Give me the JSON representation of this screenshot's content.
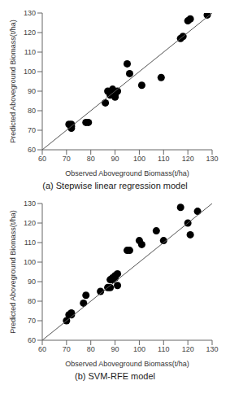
{
  "chart_data": [
    {
      "type": "scatter",
      "title": "(a) Stepwise linear regression model",
      "xlabel": "Observed Aboveground Biomass(t/ha)",
      "ylabel": "Predicted Aboveground Biomass(t/ha)",
      "xlim": [
        60,
        130
      ],
      "ylim": [
        60,
        130
      ],
      "xticks": [
        60,
        70,
        80,
        90,
        100,
        110,
        120,
        130
      ],
      "yticks": [
        60,
        70,
        80,
        90,
        100,
        110,
        120,
        130
      ],
      "grid": false,
      "series": [
        {
          "type": "scatter",
          "color": "#000000",
          "x": [
            71,
            72,
            72,
            72,
            78,
            79,
            86,
            87,
            88,
            88,
            89,
            89,
            90,
            90,
            91,
            95,
            96,
            101,
            109,
            117,
            118,
            120,
            121,
            128
          ],
          "values": [
            73,
            71,
            72,
            73,
            74,
            74,
            84,
            90,
            88,
            89,
            90,
            91,
            87,
            88,
            90,
            104,
            99,
            93,
            97,
            117,
            118,
            126,
            127,
            129
          ]
        },
        {
          "type": "line",
          "color": "#555555",
          "line_style": "solid",
          "x": [
            60,
            130
          ],
          "values": [
            60,
            130
          ]
        }
      ]
    },
    {
      "type": "scatter",
      "title": "(b) SVM-RFE model",
      "xlabel": "Observed Aboveground Biomass(t/ha)",
      "ylabel": "Predicted Aboveground Biomass(t/ha)",
      "xlim": [
        60,
        130
      ],
      "ylim": [
        60,
        130
      ],
      "xticks": [
        60,
        70,
        80,
        90,
        100,
        110,
        120,
        130
      ],
      "yticks": [
        60,
        70,
        80,
        90,
        100,
        110,
        120,
        130
      ],
      "grid": false,
      "series": [
        {
          "type": "scatter",
          "color": "#000000",
          "x": [
            70,
            71,
            72,
            72,
            77,
            78,
            84,
            87,
            88,
            88,
            89,
            89,
            90,
            90,
            91,
            91,
            95,
            96,
            100,
            101,
            107,
            110,
            117,
            120,
            121,
            124
          ],
          "values": [
            70,
            73,
            73,
            74,
            79,
            83,
            85,
            87,
            87,
            91,
            91,
            92,
            92,
            93,
            94,
            88,
            106,
            106,
            111,
            109,
            116,
            111,
            128,
            120,
            114,
            126
          ]
        },
        {
          "type": "line",
          "color": "#555555",
          "line_style": "solid",
          "x": [
            60,
            130
          ],
          "values": [
            60,
            130
          ]
        }
      ]
    }
  ]
}
